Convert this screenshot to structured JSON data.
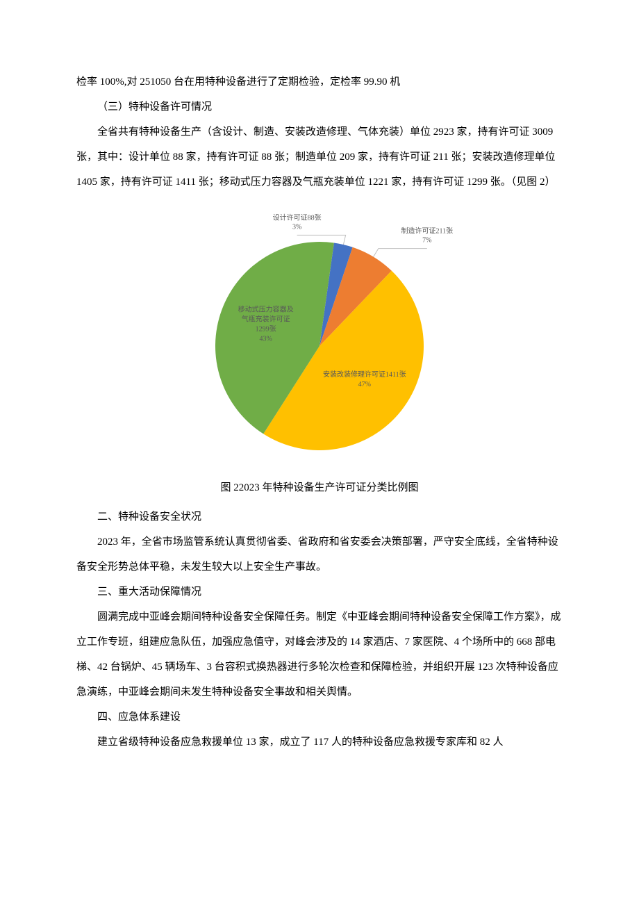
{
  "paragraphs": {
    "p1": "检率 100%,对 251050 台在用特种设备进行了定期检验，定检率 99.90 机",
    "p2": "（三）特种设备许可情况",
    "p3": "全省共有特种设备生产（含设计、制造、安装改造修理、气体充装）单位 2923 家，持有许可证 3009 张，其中：设计单位 88 家，持有许可证 88 张；制造单位 209 家，持有许可证 211 张；安装改造修理单位 1405 家，持有许可证 1411 张；移动式压力容器及气瓶充装单位 1221 家，持有许可证 1299 张。（见图 2）",
    "caption": "图 22023 年特种设备生产许可证分类比例图",
    "p4": "二、特种设备安全状况",
    "p5": "2023 年，全省市场监管系统认真贯彻省委、省政府和省安委会决策部署，严守安全底线，全省特种设备安全形势总体平稳，未发生较大以上安全生产事故。",
    "p6": "三、重大活动保障情况",
    "p7": "圆满完成中亚峰会期间特种设备安全保障任务。制定《中亚峰会期间特种设备安全保障工作方案》，成立工作专班，组建应急队伍，加强应急值守，对峰会涉及的 14 家酒店、7 家医院、4 个场所中的 668 部电梯、42 台锅炉、45 辆场车、3 台容积式换热器进行多轮次检查和保障检验，并组织开展 123 次特种设备应急演练，中亚峰会期间未发生特种设备安全事故和相关舆情。",
    "p8": "四、应急体系建设",
    "p9": "建立省级特种设备应急救援单位 13 家，成立了 117 人的特种设备应急救援专家库和 82 人"
  },
  "pie_chart": {
    "type": "pie",
    "start_angle_deg": -82,
    "label_fontsize": 10,
    "label_color": "#595959",
    "leader_color": "#bfbfbf",
    "background_color": "#ffffff",
    "slices": [
      {
        "name": "设计许可证",
        "value": 88,
        "percent": 3,
        "color": "#4472c4",
        "label_lines": [
          "设计许可证88张",
          "3%"
        ],
        "label_pos": "top-left"
      },
      {
        "name": "制造许可证",
        "value": 211,
        "percent": 7,
        "color": "#ed7d31",
        "label_lines": [
          "制造许可证211张",
          "7%"
        ],
        "label_pos": "top-right"
      },
      {
        "name": "安装改装修理许可证",
        "value": 1411,
        "percent": 47,
        "color": "#ffc000",
        "label_lines": [
          "安装改装修理许可证1411张",
          "47%"
        ],
        "label_pos": "inside"
      },
      {
        "name": "移动式压力容器及气瓶充装许可证",
        "value": 1299,
        "percent": 43,
        "color": "#70ad47",
        "label_lines": [
          "移动式压力容器及",
          "气瓶充装许可证",
          "1299张",
          "43%"
        ],
        "label_pos": "inside"
      }
    ]
  }
}
